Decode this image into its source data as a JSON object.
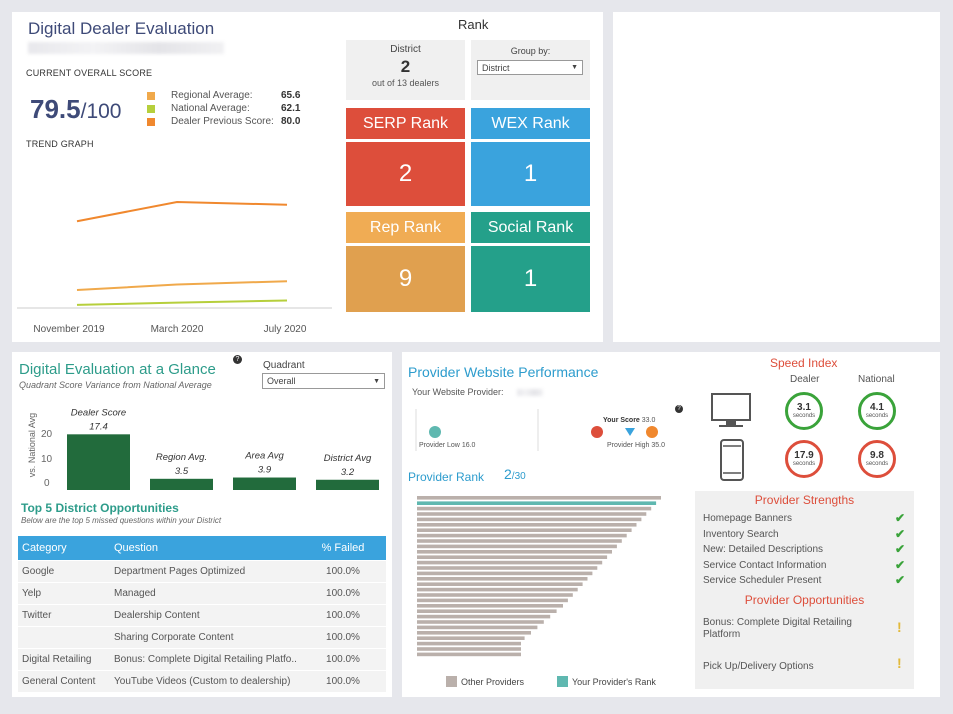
{
  "evaluation": {
    "title": "Digital Dealer Evaluation",
    "current_score_label": "CURRENT OVERALL SCORE",
    "score": "79.5",
    "score_denominator": "/100",
    "legend": [
      {
        "label": "Regional Average:",
        "value": "65.6",
        "color": "#f0a94b"
      },
      {
        "label": "National Average:",
        "value": "62.1",
        "color": "#b6cf3c"
      },
      {
        "label": "Dealer Previous Score:",
        "value": "80.0",
        "color": "#f0882e"
      }
    ],
    "trend_label": "TREND GRAPH",
    "trend_ticks": [
      "November 2019",
      "March 2020",
      "July 2020"
    ]
  },
  "chart_data": {
    "type": "line",
    "title": "TREND GRAPH",
    "x": [
      "November 2019",
      "March 2020",
      "July 2020"
    ],
    "series": [
      {
        "color": "#f0882e",
        "values": [
          76.5,
          80.0,
          79.5
        ]
      },
      {
        "color": "#f0a94b",
        "values": [
          64.0,
          65.0,
          65.6
        ]
      },
      {
        "color": "#b6cf3c",
        "values": [
          61.3,
          61.7,
          62.1
        ]
      }
    ]
  },
  "rank": {
    "title": "Rank",
    "district_label": "District",
    "district_value": "2",
    "district_sub": "out of 13 dealers",
    "group_by_label": "Group by:",
    "group_by_value": "District",
    "tiles": [
      {
        "label": "SERP Rank",
        "value": "2",
        "head": "#dd4e3b",
        "body": "#dd4e3b"
      },
      {
        "label": "WEX Rank",
        "value": "1",
        "head": "#3aa3dd",
        "body": "#3aa3dd"
      },
      {
        "label": "Rep Rank",
        "value": "9",
        "head": "#f0ac54",
        "body": "#e0a04f"
      },
      {
        "label": "Social Rank",
        "value": "1",
        "head": "#24a08a",
        "body": "#24a08a"
      }
    ]
  },
  "glance": {
    "title": "Digital Evaluation at a Glance",
    "subtitle": "Quadrant Score Variance from National Average",
    "quadrant_label": "Quadrant",
    "quadrant_value": "Overall",
    "yaxis_label": "vs. National Avg",
    "yticks": [
      "20",
      "10",
      "0"
    ],
    "bars": [
      {
        "label": "Dealer Score",
        "value": "17.4",
        "num": 17.4
      },
      {
        "label": "Region Avg.",
        "value": "3.5",
        "num": 3.5
      },
      {
        "label": "Area Avg",
        "value": "3.9",
        "num": 3.9
      },
      {
        "label": "District Avg",
        "value": "3.2",
        "num": 3.2
      }
    ]
  },
  "opportunities": {
    "title": "Top 5 District Opportunities",
    "subtitle": "Below are the top 5 missed questions within your District",
    "columns": [
      "Category",
      "Question",
      "% Failed"
    ],
    "rows": [
      [
        "Google",
        "Department Pages Optimized",
        "100.0%"
      ],
      [
        "Yelp",
        "Managed",
        "100.0%"
      ],
      [
        "Twitter",
        "Dealership Content",
        "100.0%"
      ],
      [
        "",
        "Sharing Corporate Content",
        "100.0%"
      ],
      [
        "Digital Retailing",
        "Bonus: Complete Digital Retailing Platfo..",
        "100.0%"
      ],
      [
        "General Content",
        "YouTube Videos (Custom to dealership)",
        "100.0%"
      ]
    ]
  },
  "provider": {
    "title": "Provider Website Performance",
    "provider_label": "Your Website Provider:",
    "your_score_label": "Your Score",
    "your_score": "33.0",
    "low_label": "Provider Low",
    "low_value": "16.0",
    "high_label": "Provider High",
    "high_value": "35.0",
    "rank_label": "Provider Rank",
    "rank_value": "2",
    "rank_total": "/30",
    "legend_other": "Other Providers",
    "legend_yours": "Your Provider's Rank",
    "other_color": "#bab0ab",
    "yours_color": "#5fb8b0"
  },
  "speed": {
    "title": "Speed Index",
    "dealer_label": "Dealer",
    "national_label": "National",
    "unit": "seconds",
    "desktop": {
      "dealer": "3.1",
      "national": "4.1"
    },
    "mobile": {
      "dealer": "17.9",
      "national": "9.8"
    }
  },
  "strengths": {
    "title": "Provider Strengths",
    "items": [
      "Homepage Banners",
      "Inventory Search",
      "New: Detailed Descriptions",
      "Service Contact Information",
      "Service Scheduler Present"
    ]
  },
  "weak": {
    "title": "Provider Opportunities",
    "items": [
      "Bonus: Complete Digital Retailing Platform",
      "Pick Up/Delivery Options"
    ]
  }
}
